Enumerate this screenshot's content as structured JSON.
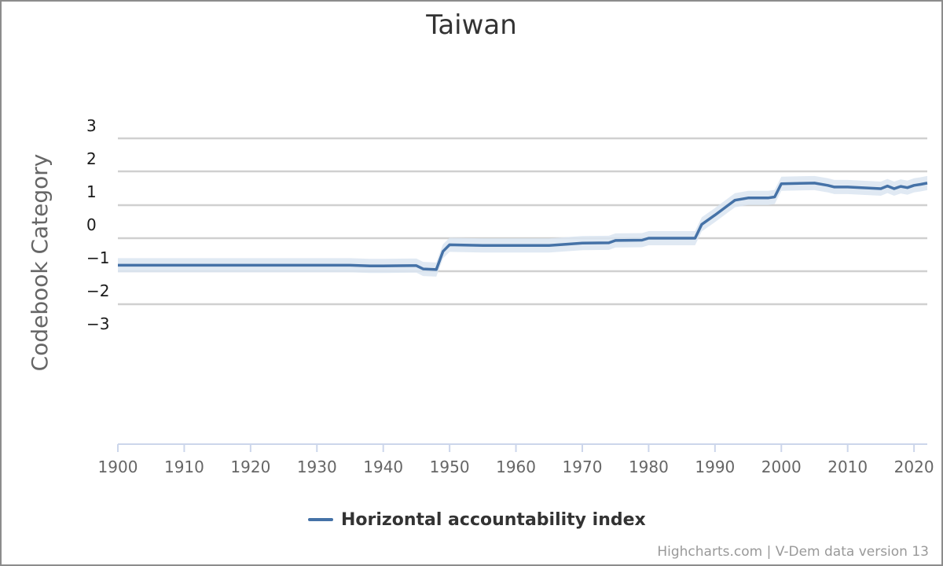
{
  "colors": {
    "series": "#4572a7",
    "band": "#dbe5f1",
    "gridline": "#d0d0d0",
    "axis_line": "#ccd6eb"
  },
  "credits": "Highcharts.com | V-Dem data version 13",
  "chart_data": {
    "type": "line",
    "title": "Taiwan",
    "ylabel": "Codebook Category",
    "xlabel": "",
    "ylim": [
      -3,
      3
    ],
    "xlim": [
      1900,
      2022
    ],
    "grid": true,
    "legend_position": "bottom-center",
    "y_ticks": [
      "3",
      "2",
      "1",
      "0",
      "−1",
      "−2",
      "−3"
    ],
    "x_ticks": [
      "1900",
      "1910",
      "1920",
      "1930",
      "1940",
      "1950",
      "1960",
      "1970",
      "1980",
      "1990",
      "2000",
      "2010",
      "2020"
    ],
    "series": [
      {
        "name": "Horizontal accountability index",
        "color": "#4572a7",
        "has_uncertainty_band": true,
        "points": [
          [
            1900,
            -0.82
          ],
          [
            1905,
            -0.82
          ],
          [
            1910,
            -0.82
          ],
          [
            1915,
            -0.82
          ],
          [
            1920,
            -0.82
          ],
          [
            1925,
            -0.82
          ],
          [
            1930,
            -0.82
          ],
          [
            1935,
            -0.82
          ],
          [
            1938,
            -0.84
          ],
          [
            1940,
            -0.84
          ],
          [
            1944,
            -0.83
          ],
          [
            1945,
            -0.83
          ],
          [
            1946,
            -0.93
          ],
          [
            1948,
            -0.95
          ],
          [
            1949,
            -0.4
          ],
          [
            1950,
            -0.2
          ],
          [
            1955,
            -0.22
          ],
          [
            1960,
            -0.22
          ],
          [
            1965,
            -0.22
          ],
          [
            1970,
            -0.15
          ],
          [
            1974,
            -0.14
          ],
          [
            1975,
            -0.07
          ],
          [
            1979,
            -0.06
          ],
          [
            1980,
            0.0
          ],
          [
            1983,
            0.0
          ],
          [
            1987,
            0.0
          ],
          [
            1988,
            0.42
          ],
          [
            1990,
            0.7
          ],
          [
            1992,
            1.0
          ],
          [
            1993,
            1.15
          ],
          [
            1995,
            1.22
          ],
          [
            1998,
            1.22
          ],
          [
            1999,
            1.25
          ],
          [
            2000,
            1.65
          ],
          [
            2005,
            1.67
          ],
          [
            2007,
            1.6
          ],
          [
            2008,
            1.55
          ],
          [
            2010,
            1.55
          ],
          [
            2015,
            1.5
          ],
          [
            2016,
            1.58
          ],
          [
            2017,
            1.5
          ],
          [
            2018,
            1.57
          ],
          [
            2019,
            1.53
          ],
          [
            2020,
            1.6
          ],
          [
            2021,
            1.63
          ],
          [
            2022,
            1.67
          ]
        ]
      }
    ]
  }
}
